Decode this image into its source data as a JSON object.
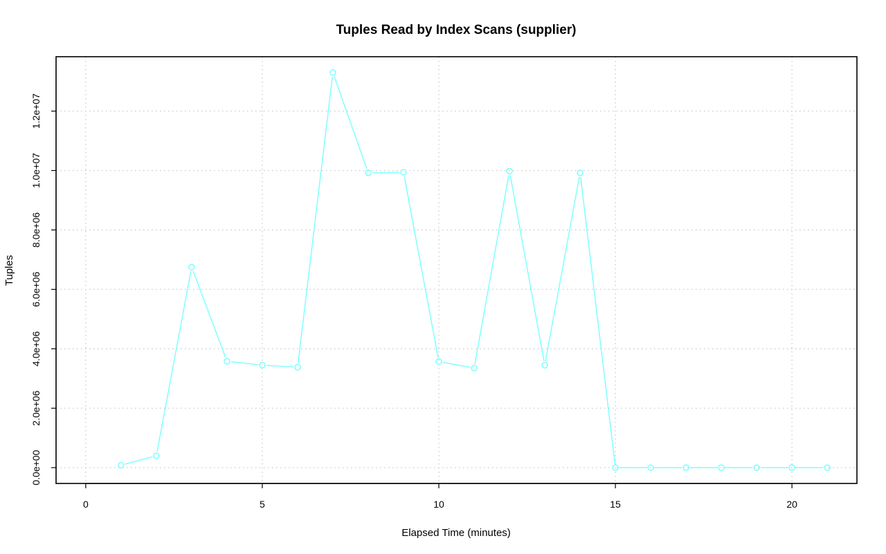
{
  "chart_data": {
    "type": "line",
    "title": "Tuples Read by Index Scans (supplier)",
    "xlabel": "Elapsed Time (minutes)",
    "ylabel": "Tuples",
    "xlim": [
      -0.84,
      21.84
    ],
    "ylim": [
      -532000,
      13830000
    ],
    "x_ticks": [
      0,
      5,
      10,
      15,
      20
    ],
    "x_tick_labels": [
      "0",
      "5",
      "10",
      "15",
      "20"
    ],
    "y_ticks": [
      0,
      2000000,
      4000000,
      6000000,
      8000000,
      10000000,
      12000000
    ],
    "y_tick_labels": [
      "0.0e+00",
      "2.0e+06",
      "4.0e+06",
      "6.0e+06",
      "8.0e+06",
      "1.0e+07",
      "1.2e+07"
    ],
    "grid": true,
    "legend": "none",
    "series": [
      {
        "color": "#80ffff",
        "marker": "open-circle",
        "x": [
          1,
          2,
          3,
          4,
          5,
          6,
          7,
          8,
          9,
          10,
          11,
          12,
          13,
          14,
          15,
          16,
          17,
          18,
          19,
          20,
          21
        ],
        "y": [
          80000,
          400000,
          6750000,
          3580000,
          3450000,
          3380000,
          13300000,
          9920000,
          9940000,
          3570000,
          3350000,
          9980000,
          3450000,
          9920000,
          0,
          0,
          0,
          0,
          0,
          0,
          0
        ]
      }
    ]
  }
}
